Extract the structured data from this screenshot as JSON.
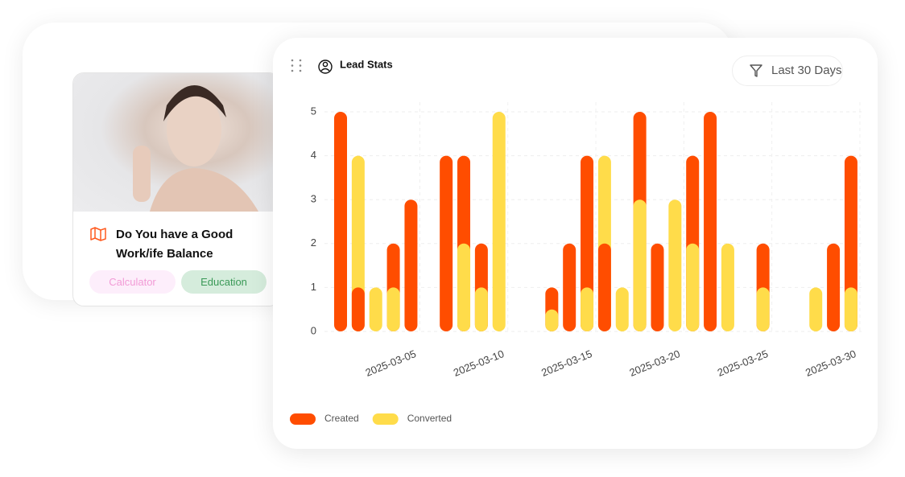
{
  "card": {
    "title": "Do You have a Good Work/ife Balance",
    "tags": [
      "Calculator",
      "Education"
    ]
  },
  "filter_label": "Last 30 Days",
  "chart_data": {
    "type": "bar",
    "title": "Lead Stats",
    "categories": [
      null,
      null,
      null,
      null,
      "2025-03-05",
      null,
      null,
      null,
      null,
      "2025-03-10",
      null,
      null,
      null,
      null,
      "2025-03-15",
      null,
      null,
      null,
      null,
      "2025-03-20",
      null,
      null,
      null,
      null,
      "2025-03-25",
      null,
      null,
      null,
      null,
      "2025-03-30"
    ],
    "series": [
      {
        "name": "Created",
        "color": "#ff4d00",
        "values": [
          5,
          1,
          0,
          2,
          3,
          0,
          4,
          4,
          2,
          0,
          0,
          0,
          1,
          2,
          4,
          2,
          0,
          5,
          2,
          0,
          4,
          5,
          0,
          0,
          2,
          0,
          0,
          0,
          2,
          4
        ]
      },
      {
        "name": "Converted",
        "color": "#ffdc4a",
        "values": [
          0,
          4,
          1,
          1,
          0,
          0,
          0,
          2,
          1,
          5,
          0,
          0,
          0.5,
          0,
          1,
          4,
          1,
          3,
          0,
          3,
          2,
          0,
          2,
          0,
          1,
          0,
          0,
          1,
          0,
          1
        ]
      }
    ],
    "ylim": [
      0,
      5
    ],
    "yticks": [
      0,
      1,
      2,
      3,
      4,
      5
    ],
    "grid": true,
    "legend": "bottom-left"
  }
}
